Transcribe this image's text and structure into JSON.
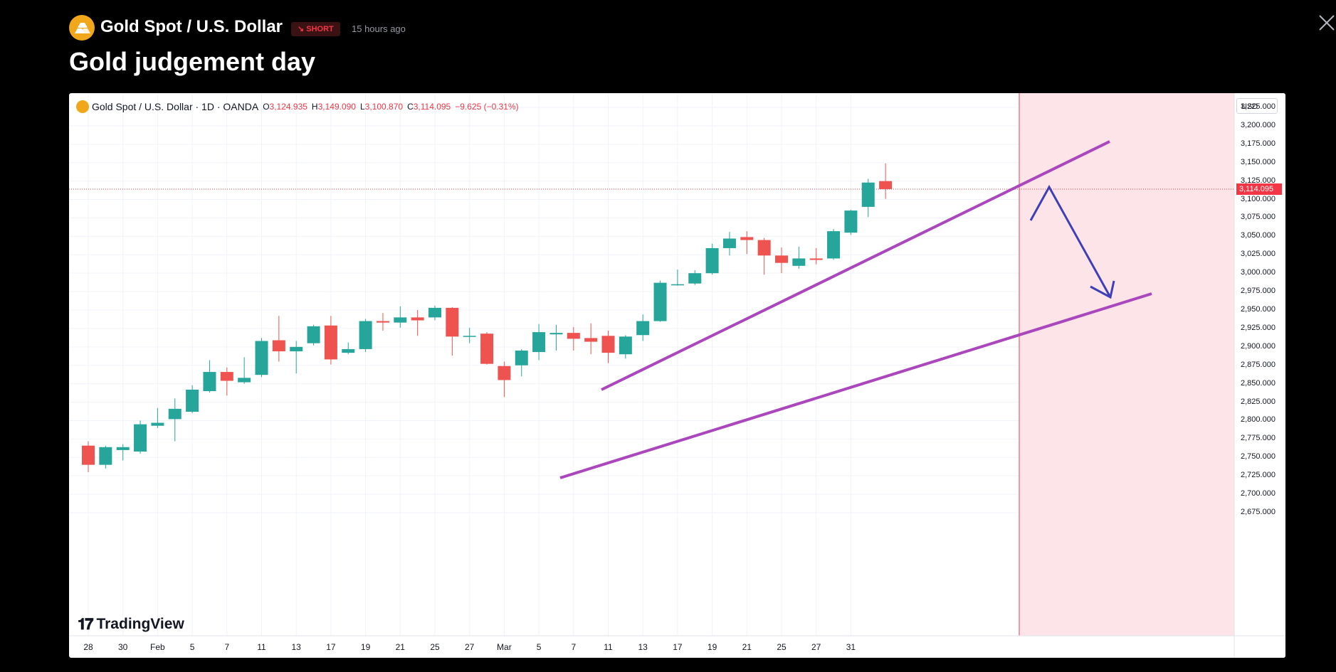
{
  "header": {
    "symbol_name": "Gold Spot / U.S. Dollar",
    "badge_label": "↘ SHORT",
    "time_ago": "15 hours ago",
    "idea_title": "Gold judgement day"
  },
  "legend": {
    "symbol": "Gold Spot / U.S. Dollar · 1D · OANDA",
    "o_label": "O",
    "o_value": "3,124.935",
    "h_label": "H",
    "h_value": "3,149.090",
    "l_label": "L",
    "l_value": "3,100.870",
    "c_label": "C",
    "c_value": "3,114.095",
    "change": "−9.625 (−0.31%)"
  },
  "currency": "USD",
  "price_tag": "3,114.095",
  "watermark": "TradingView",
  "colors": {
    "up": "#26a69a",
    "down": "#ef5350",
    "channel": "#ab47bc",
    "arrow": "#3f3fb7",
    "zone": "#fce4e9",
    "vline": "#f7768f"
  },
  "chart_data": {
    "type": "candlestick",
    "y_ticks": [
      "3,225.000",
      "3,200.000",
      "3,175.000",
      "3,150.000",
      "3,125.000",
      "3,100.000",
      "3,075.000",
      "3,050.000",
      "3,025.000",
      "3,000.000",
      "2,975.000",
      "2,950.000",
      "2,925.000",
      "2,900.000",
      "2,875.000",
      "2,850.000",
      "2,825.000",
      "2,800.000",
      "2,775.000",
      "2,750.000",
      "2,725.000",
      "2,700.000",
      "2,675.000"
    ],
    "ylim": [
      2660,
      3245
    ],
    "x_ticks": [
      {
        "label": "28",
        "index": 0
      },
      {
        "label": "30",
        "index": 2
      },
      {
        "label": "Feb",
        "index": 4
      },
      {
        "label": "5",
        "index": 6
      },
      {
        "label": "7",
        "index": 8
      },
      {
        "label": "11",
        "index": 10
      },
      {
        "label": "13",
        "index": 12
      },
      {
        "label": "17",
        "index": 14
      },
      {
        "label": "19",
        "index": 16
      },
      {
        "label": "21",
        "index": 18
      },
      {
        "label": "25",
        "index": 20
      },
      {
        "label": "27",
        "index": 22
      },
      {
        "label": "Mar",
        "index": 24
      },
      {
        "label": "5",
        "index": 26
      },
      {
        "label": "7",
        "index": 28
      },
      {
        "label": "11",
        "index": 30
      },
      {
        "label": "13",
        "index": 32
      },
      {
        "label": "17",
        "index": 34
      },
      {
        "label": "19",
        "index": 36
      },
      {
        "label": "21",
        "index": 38
      },
      {
        "label": "25",
        "index": 40
      },
      {
        "label": "27",
        "index": 42
      },
      {
        "label": "31",
        "index": 44
      }
    ],
    "candles": [
      {
        "o": 2766,
        "h": 2772,
        "l": 2730,
        "c": 2740
      },
      {
        "o": 2740,
        "h": 2766,
        "l": 2735,
        "c": 2764
      },
      {
        "o": 2760,
        "h": 2768,
        "l": 2746,
        "c": 2764
      },
      {
        "o": 2758,
        "h": 2800,
        "l": 2755,
        "c": 2795
      },
      {
        "o": 2793,
        "h": 2817,
        "l": 2790,
        "c": 2797
      },
      {
        "o": 2802,
        "h": 2830,
        "l": 2772,
        "c": 2816
      },
      {
        "o": 2812,
        "h": 2848,
        "l": 2810,
        "c": 2842
      },
      {
        "o": 2840,
        "h": 2882,
        "l": 2838,
        "c": 2866
      },
      {
        "o": 2866,
        "h": 2872,
        "l": 2834,
        "c": 2854
      },
      {
        "o": 2852,
        "h": 2886,
        "l": 2850,
        "c": 2858
      },
      {
        "o": 2862,
        "h": 2912,
        "l": 2859,
        "c": 2908
      },
      {
        "o": 2909,
        "h": 2942,
        "l": 2880,
        "c": 2894
      },
      {
        "o": 2894,
        "h": 2908,
        "l": 2864,
        "c": 2900
      },
      {
        "o": 2905,
        "h": 2930,
        "l": 2902,
        "c": 2928
      },
      {
        "o": 2929,
        "h": 2942,
        "l": 2876,
        "c": 2883
      },
      {
        "o": 2892,
        "h": 2906,
        "l": 2890,
        "c": 2897
      },
      {
        "o": 2897,
        "h": 2938,
        "l": 2893,
        "c": 2935
      },
      {
        "o": 2935,
        "h": 2946,
        "l": 2922,
        "c": 2933
      },
      {
        "o": 2933,
        "h": 2955,
        "l": 2926,
        "c": 2940
      },
      {
        "o": 2940,
        "h": 2950,
        "l": 2915,
        "c": 2936
      },
      {
        "o": 2940,
        "h": 2956,
        "l": 2936,
        "c": 2953
      },
      {
        "o": 2953,
        "h": 2954,
        "l": 2888,
        "c": 2914
      },
      {
        "o": 2914,
        "h": 2926,
        "l": 2905,
        "c": 2915
      },
      {
        "o": 2918,
        "h": 2920,
        "l": 2876,
        "c": 2877
      },
      {
        "o": 2874,
        "h": 2880,
        "l": 2832,
        "c": 2855
      },
      {
        "o": 2875,
        "h": 2897,
        "l": 2860,
        "c": 2895
      },
      {
        "o": 2893,
        "h": 2931,
        "l": 2882,
        "c": 2920
      },
      {
        "o": 2917,
        "h": 2930,
        "l": 2895,
        "c": 2919
      },
      {
        "o": 2919,
        "h": 2927,
        "l": 2895,
        "c": 2911
      },
      {
        "o": 2912,
        "h": 2932,
        "l": 2890,
        "c": 2907
      },
      {
        "o": 2915,
        "h": 2922,
        "l": 2878,
        "c": 2892
      },
      {
        "o": 2890,
        "h": 2916,
        "l": 2884,
        "c": 2914
      },
      {
        "o": 2916,
        "h": 2944,
        "l": 2908,
        "c": 2935
      },
      {
        "o": 2935,
        "h": 2990,
        "l": 2934,
        "c": 2987
      },
      {
        "o": 2985,
        "h": 3005,
        "l": 2983,
        "c": 2985
      },
      {
        "o": 2986,
        "h": 3004,
        "l": 2984,
        "c": 3000
      },
      {
        "o": 3000,
        "h": 3040,
        "l": 2998,
        "c": 3034
      },
      {
        "o": 3034,
        "h": 3056,
        "l": 3024,
        "c": 3047
      },
      {
        "o": 3049,
        "h": 3057,
        "l": 3026,
        "c": 3045
      },
      {
        "o": 3045,
        "h": 3048,
        "l": 2998,
        "c": 3024
      },
      {
        "o": 3024,
        "h": 3035,
        "l": 3000,
        "c": 3014
      },
      {
        "o": 3010,
        "h": 3036,
        "l": 3006,
        "c": 3020
      },
      {
        "o": 3020,
        "h": 3034,
        "l": 3012,
        "c": 3018
      },
      {
        "o": 3020,
        "h": 3060,
        "l": 3018,
        "c": 3057
      },
      {
        "o": 3055,
        "h": 3086,
        "l": 3052,
        "c": 3085
      },
      {
        "o": 3090,
        "h": 3128,
        "l": 3076,
        "c": 3123
      },
      {
        "o": 3124.935,
        "h": 3149.09,
        "l": 3100.87,
        "c": 3114.095
      }
    ]
  }
}
